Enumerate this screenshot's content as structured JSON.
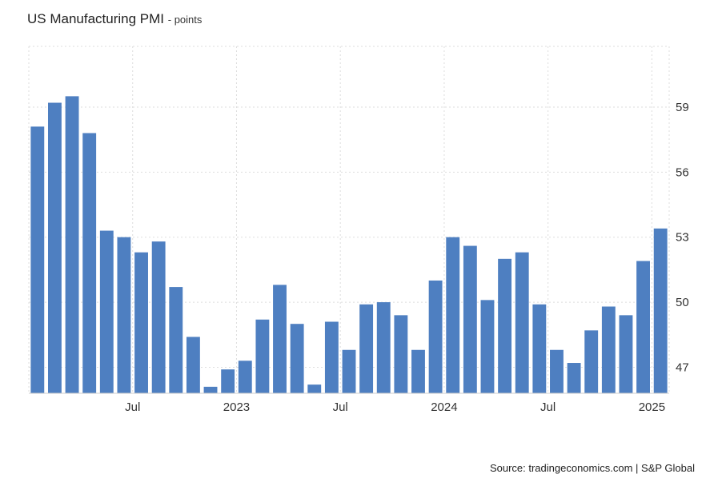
{
  "chart_data": {
    "type": "bar",
    "title": "US Manufacturing PMI",
    "unit_suffix": "- points",
    "xlabel": "",
    "ylabel": "",
    "ylim": [
      45.8,
      61.8
    ],
    "y_ticks": [
      47,
      50,
      53,
      56,
      59
    ],
    "x_tick_labels": [
      {
        "label": "Jul",
        "index": 5.5
      },
      {
        "label": "2023",
        "index": 11.5
      },
      {
        "label": "Jul",
        "index": 17.5
      },
      {
        "label": "2024",
        "index": 23.5
      },
      {
        "label": "Jul",
        "index": 29.5
      },
      {
        "label": "2025",
        "index": 35.5
      }
    ],
    "grid": true,
    "bar_color": "#4e7fc1",
    "series": [
      {
        "name": "US Manufacturing PMI",
        "values": [
          58.1,
          59.2,
          59.5,
          57.8,
          53.3,
          53.0,
          52.3,
          52.8,
          50.7,
          48.4,
          46.1,
          46.9,
          47.3,
          49.2,
          50.8,
          49.0,
          46.2,
          49.1,
          47.8,
          49.9,
          50.0,
          49.4,
          47.8,
          51.0,
          53.0,
          52.6,
          50.1,
          52.0,
          52.3,
          49.9,
          47.8,
          47.2,
          48.7,
          49.8,
          49.4,
          51.9,
          53.4
        ]
      }
    ]
  },
  "source_text": "Source: tradingeconomics.com | S&P Global"
}
